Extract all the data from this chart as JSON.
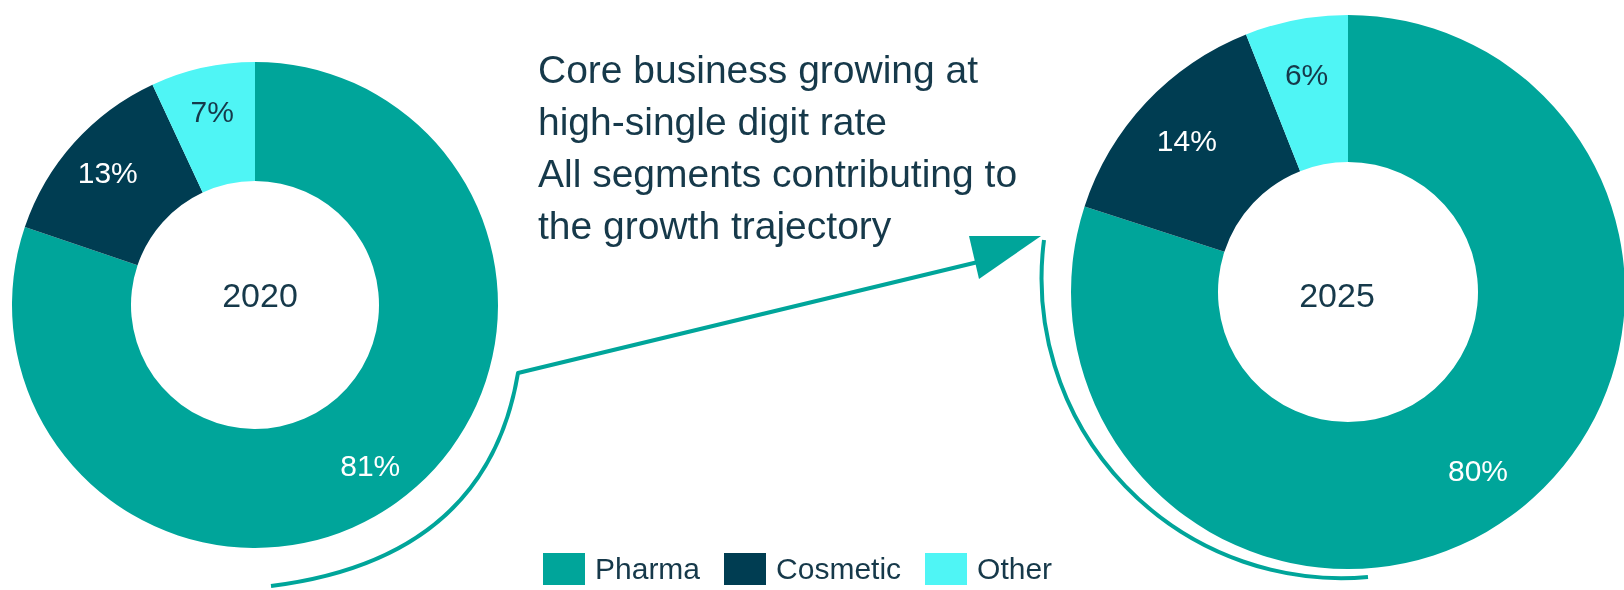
{
  "chart_data": [
    {
      "type": "donut",
      "title": "2020",
      "categories": [
        "Pharma",
        "Cosmetic",
        "Other"
      ],
      "values": [
        81,
        13,
        7
      ],
      "colors": [
        "#00a59a",
        "#003d52",
        "#4ff5f5"
      ],
      "value_labels": [
        "81%",
        "13%",
        "7%"
      ],
      "legend": "bottom",
      "annotations": [
        "Core business growing at high-single digit rate",
        "All segments contributing to the growth trajectory"
      ]
    },
    {
      "type": "donut",
      "title": "2025",
      "categories": [
        null,
        null,
        null
      ],
      "values": [
        80,
        14,
        6
      ],
      "colors": [
        "#00a59a",
        "#003d52",
        "#4ff5f5"
      ],
      "value_labels": [
        "80%",
        "14%",
        "6%"
      ]
    }
  ]
}
